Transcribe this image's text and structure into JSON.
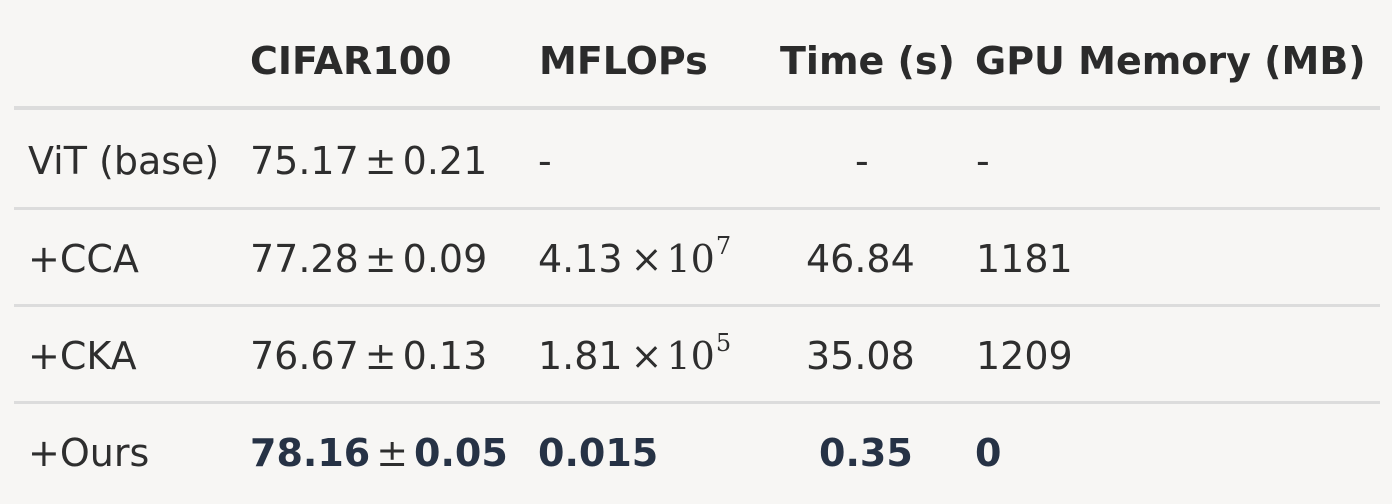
{
  "table": {
    "headers": [
      "",
      "CIFAR100",
      "MFLOPs",
      "Time (s)",
      "GPU Memory (MB)"
    ],
    "rows": [
      {
        "method": "ViT (base)",
        "cifar_mean": "75.17",
        "pm": "±",
        "cifar_std": "0.21",
        "mflops": "-",
        "mflops_mantissa": "",
        "mflops_times": "",
        "mflops_base": "",
        "mflops_exp": "",
        "time": "-",
        "gpu": "-",
        "bold": false
      },
      {
        "method": "+CCA",
        "cifar_mean": "77.28",
        "pm": "±",
        "cifar_std": "0.09",
        "mflops": "",
        "mflops_mantissa": "4.13",
        "mflops_times": "×",
        "mflops_base": "10",
        "mflops_exp": "7",
        "time": "46.84",
        "gpu": "1181",
        "bold": false
      },
      {
        "method": "+CKA",
        "cifar_mean": "76.67",
        "pm": "±",
        "cifar_std": "0.13",
        "mflops": "",
        "mflops_mantissa": "1.81",
        "mflops_times": "×",
        "mflops_base": "10",
        "mflops_exp": "5",
        "time": "35.08",
        "gpu": "1209",
        "bold": false
      },
      {
        "method": "+Ours",
        "cifar_mean": "78.16",
        "pm": "±",
        "cifar_std": "0.05",
        "mflops": "0.015",
        "mflops_mantissa": "",
        "mflops_times": "",
        "mflops_base": "",
        "mflops_exp": "",
        "time": "0.35",
        "gpu": "0",
        "bold": true
      }
    ]
  },
  "colors": {
    "background": "#f7f6f4",
    "text": "#2e2e2e",
    "bold_text": "#263245",
    "rule": "#dcdcdc"
  }
}
